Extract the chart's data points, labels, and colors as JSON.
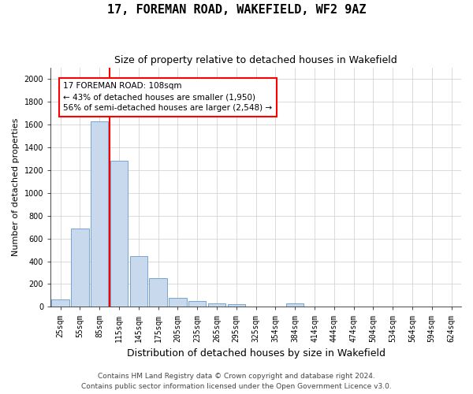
{
  "title1": "17, FOREMAN ROAD, WAKEFIELD, WF2 9AZ",
  "title2": "Size of property relative to detached houses in Wakefield",
  "xlabel": "Distribution of detached houses by size in Wakefield",
  "ylabel": "Number of detached properties",
  "categories": [
    "25sqm",
    "55sqm",
    "85sqm",
    "115sqm",
    "145sqm",
    "175sqm",
    "205sqm",
    "235sqm",
    "265sqm",
    "295sqm",
    "325sqm",
    "354sqm",
    "384sqm",
    "414sqm",
    "444sqm",
    "474sqm",
    "504sqm",
    "534sqm",
    "564sqm",
    "594sqm",
    "624sqm"
  ],
  "values": [
    65,
    690,
    1630,
    1280,
    445,
    250,
    80,
    50,
    30,
    25,
    0,
    0,
    30,
    0,
    0,
    0,
    0,
    0,
    0,
    0,
    0
  ],
  "bar_color": "#c9d9ed",
  "bar_edge_color": "#6699cc",
  "vline_color": "red",
  "annotation_text": "17 FOREMAN ROAD: 108sqm\n← 43% of detached houses are smaller (1,950)\n56% of semi-detached houses are larger (2,548) →",
  "annotation_box_color": "white",
  "annotation_box_edge": "red",
  "ylim": [
    0,
    2100
  ],
  "yticks": [
    0,
    200,
    400,
    600,
    800,
    1000,
    1200,
    1400,
    1600,
    1800,
    2000
  ],
  "grid_color": "#cccccc",
  "background_color": "white",
  "footer1": "Contains HM Land Registry data © Crown copyright and database right 2024.",
  "footer2": "Contains public sector information licensed under the Open Government Licence v3.0.",
  "title1_fontsize": 11,
  "title2_fontsize": 9,
  "xlabel_fontsize": 9,
  "ylabel_fontsize": 8,
  "tick_fontsize": 7,
  "annotation_fontsize": 7.5,
  "footer_fontsize": 6.5
}
